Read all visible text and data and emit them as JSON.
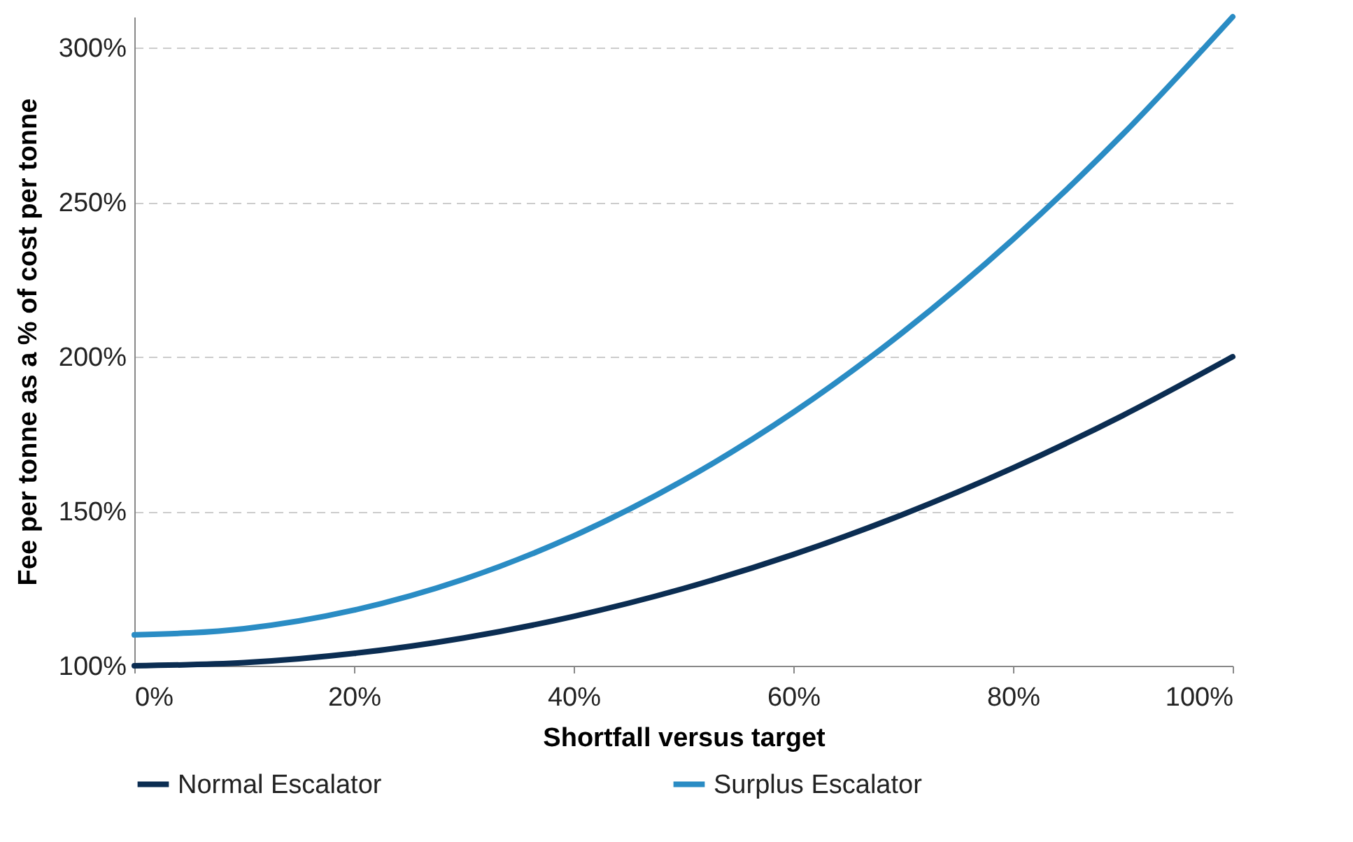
{
  "chart_data": {
    "type": "line",
    "xlabel": "Shortfall versus target",
    "ylabel": "Fee per tonne as a % of cost per tonne",
    "x": [
      0,
      10,
      20,
      30,
      40,
      50,
      60,
      70,
      80,
      90,
      100
    ],
    "series": [
      {
        "name": "Normal Escalator",
        "color": "#0b2d52",
        "values": [
          100,
          101,
          104,
          109,
          116,
          125,
          136,
          149,
          164,
          181,
          200
        ]
      },
      {
        "name": "Surplus Escalator",
        "color": "#2a8cc4",
        "values": [
          110,
          112,
          118,
          128,
          142,
          160,
          182,
          208,
          238,
          272,
          310
        ]
      }
    ],
    "xlim": [
      0,
      100
    ],
    "xticks": [
      {
        "value": 0,
        "label": "0%"
      },
      {
        "value": 20,
        "label": "20%"
      },
      {
        "value": 40,
        "label": "40%"
      },
      {
        "value": 60,
        "label": "60%"
      },
      {
        "value": 80,
        "label": "80%"
      },
      {
        "value": 100,
        "label": "100%"
      }
    ],
    "ylim": [
      100,
      310
    ],
    "yticks": [
      {
        "value": 100,
        "label": "100%"
      },
      {
        "value": 150,
        "label": "150%"
      },
      {
        "value": 200,
        "label": "200%"
      },
      {
        "value": 250,
        "label": "250%"
      },
      {
        "value": 300,
        "label": "300%"
      }
    ],
    "grid": "y",
    "legend": "bottom",
    "marker": "none",
    "line_style": "solid"
  }
}
